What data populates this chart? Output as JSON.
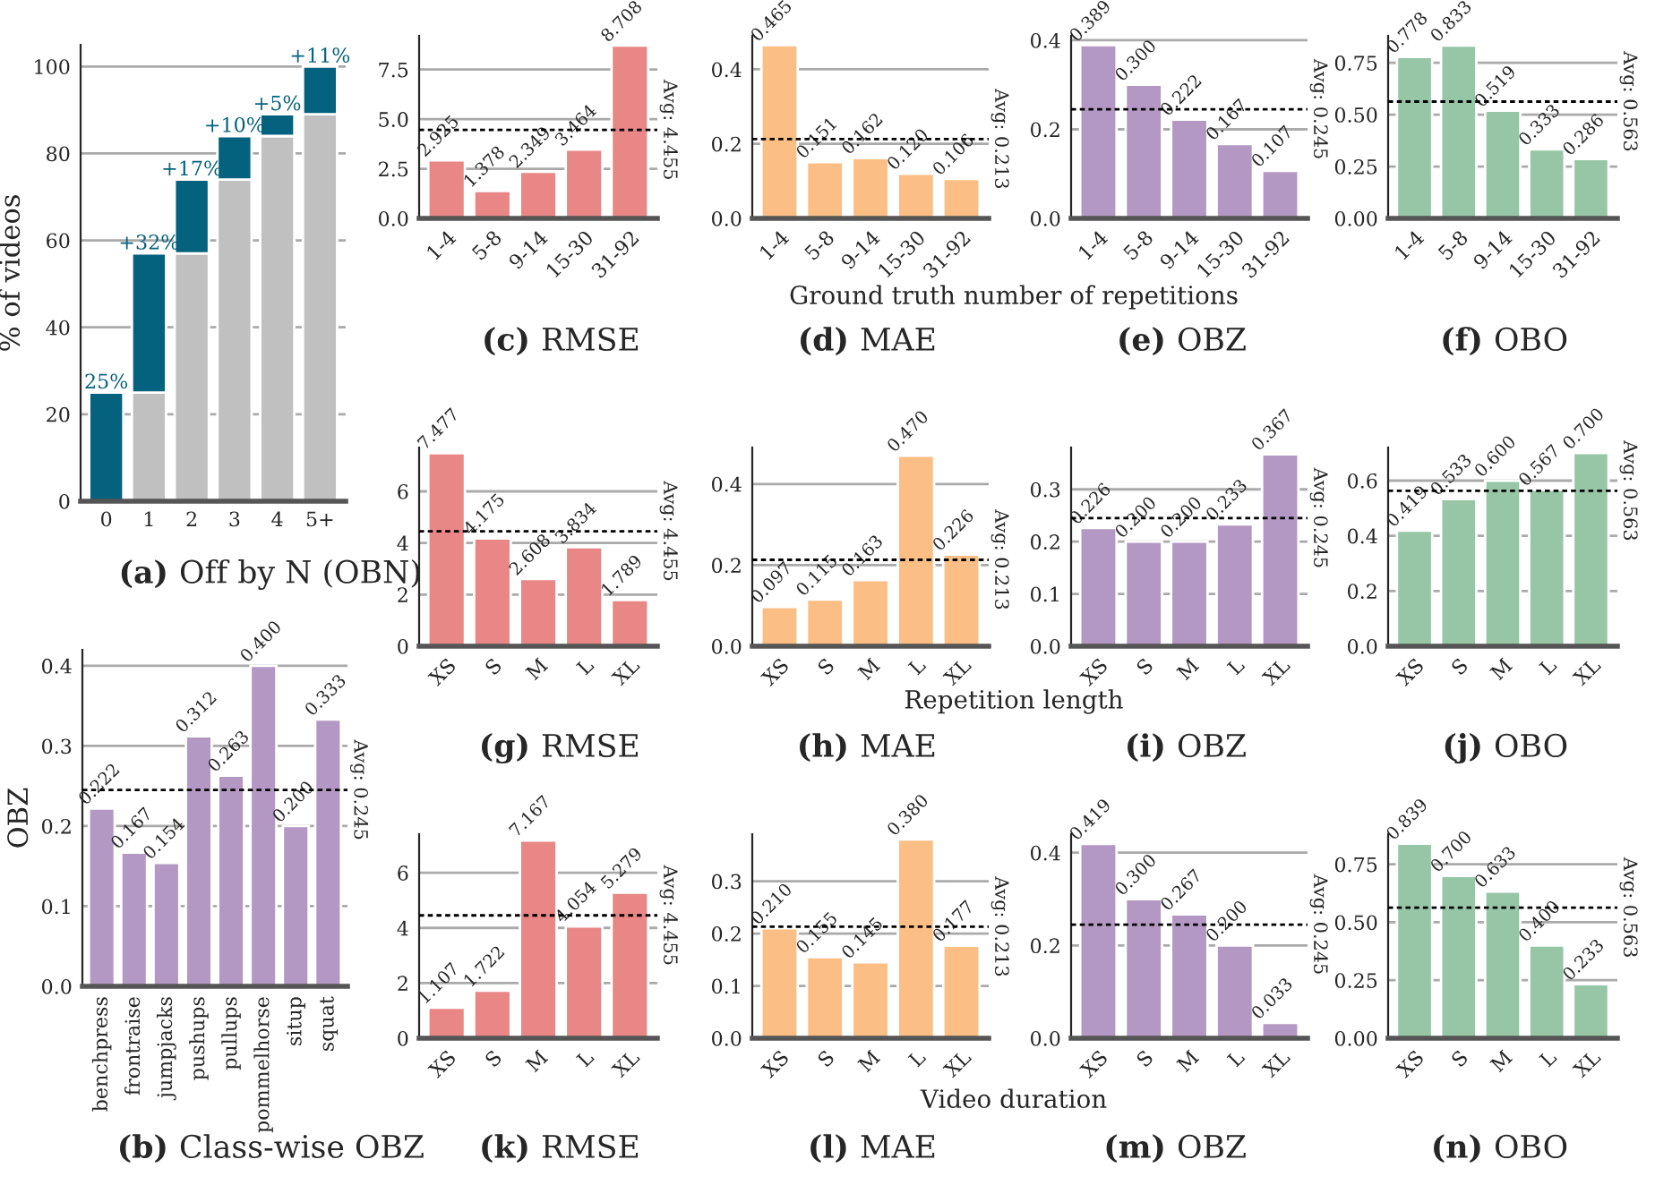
{
  "chart_data": [
    {
      "type": "bar",
      "title": "(a) Off by N (OBN)",
      "ylabel": "% of videos",
      "categories": [
        "0",
        "1",
        "2",
        "3",
        "4",
        "5+"
      ],
      "stacked": true,
      "ylim": [
        0,
        105
      ],
      "yticks": [
        0,
        20,
        40,
        60,
        80,
        100
      ],
      "grid": "y",
      "legend": false,
      "series": [
        {
          "color": "#c0c0c0",
          "values": [
            null,
            25,
            57,
            74,
            84,
            89
          ]
        },
        {
          "color": "#05627f",
          "values": [
            25,
            32,
            17,
            10,
            5,
            11
          ],
          "value_labels": [
            "25%",
            "+32%",
            "+17%",
            "+10%",
            "+5%",
            "+11%"
          ]
        }
      ]
    },
    {
      "type": "bar",
      "title": "(b) Class-wise OBZ",
      "ylabel": "OBZ",
      "categories": [
        "benchpress",
        "frontraise",
        "jumpjacks",
        "pushups",
        "pullups",
        "pommelhorse",
        "situp",
        "squat"
      ],
      "values": [
        0.222,
        0.167,
        0.154,
        0.312,
        0.263,
        0.4,
        0.2,
        0.333
      ],
      "value_labels": [
        "0.222",
        "0.167",
        "0.154",
        "0.312",
        "0.263",
        "0.400",
        "0.200",
        "0.333"
      ],
      "color": "#b498c4",
      "ylim": [
        0,
        0.42
      ],
      "yticks": [
        {
          "value": 0,
          "label": "0.0"
        },
        0.1,
        0.2,
        0.3,
        0.4
      ],
      "grid": "y",
      "ref_lines": [
        {
          "axis": "y",
          "value": 0.245,
          "label": "Avg: 0.245",
          "line_style": "dotted"
        }
      ]
    },
    {
      "type": "bar",
      "title": "(c) RMSE",
      "categories": [
        "1-4",
        "5-8",
        "9-14",
        "15-30",
        "31-92"
      ],
      "values": [
        2.925,
        1.378,
        2.349,
        3.464,
        8.708
      ],
      "value_labels": [
        "2.925",
        "1.378",
        "2.349",
        "3.464",
        "8.708"
      ],
      "color": "#e98686",
      "ylim": [
        0,
        9.2
      ],
      "yticks": [
        {
          "value": 0,
          "label": "0.0"
        },
        2.5,
        {
          "value": 5,
          "label": "5.0"
        },
        7.5
      ],
      "grid": "y",
      "ref_lines": [
        {
          "axis": "y",
          "value": 4.455,
          "label": "Avg: 4.455",
          "line_style": "dotted"
        }
      ]
    },
    {
      "type": "bar",
      "title": "(d) MAE",
      "xlabel": "Ground truth number of repetitions",
      "categories": [
        "1-4",
        "5-8",
        "9-14",
        "15-30",
        "31-92"
      ],
      "values": [
        0.465,
        0.151,
        0.162,
        0.12,
        0.106
      ],
      "value_labels": [
        "0.465",
        "0.151",
        "0.162",
        "0.120",
        "0.106"
      ],
      "color": "#fbbf85",
      "ylim": [
        0,
        0.49
      ],
      "yticks": [
        {
          "value": 0,
          "label": "0.0"
        },
        0.2,
        0.4
      ],
      "grid": "y",
      "ref_lines": [
        {
          "axis": "y",
          "value": 0.213,
          "label": "Avg: 0.213",
          "line_style": "dotted"
        }
      ]
    },
    {
      "type": "bar",
      "title": "(e) OBZ",
      "categories": [
        "1-4",
        "5-8",
        "9-14",
        "15-30",
        "31-92"
      ],
      "values": [
        0.389,
        0.3,
        0.222,
        0.167,
        0.107
      ],
      "value_labels": [
        "0.389",
        "0.300",
        "0.222",
        "0.167",
        "0.107"
      ],
      "color": "#b498c4",
      "ylim": [
        0,
        0.41
      ],
      "yticks": [
        {
          "value": 0,
          "label": "0.0"
        },
        0.2,
        0.4
      ],
      "grid": "y",
      "ref_lines": [
        {
          "axis": "y",
          "value": 0.245,
          "label": "Avg: 0.245",
          "line_style": "dotted"
        }
      ]
    },
    {
      "type": "bar",
      "title": "(f) OBO",
      "categories": [
        "1-4",
        "5-8",
        "9-14",
        "15-30",
        "31-92"
      ],
      "values": [
        0.778,
        0.833,
        0.519,
        0.333,
        0.286
      ],
      "value_labels": [
        "0.778",
        "0.833",
        "0.519",
        "0.333",
        "0.286"
      ],
      "color": "#96c6a6",
      "ylim": [
        0,
        0.88
      ],
      "yticks": [
        {
          "value": 0,
          "label": "0.00"
        },
        0.25,
        {
          "value": 0.5,
          "label": "0.50"
        },
        0.75
      ],
      "grid": "y",
      "ref_lines": [
        {
          "axis": "y",
          "value": 0.563,
          "label": "Avg: 0.563",
          "line_style": "dotted"
        }
      ]
    },
    {
      "type": "bar",
      "title": "(g) RMSE",
      "categories": [
        "XS",
        "S",
        "M",
        "L",
        "XL"
      ],
      "values": [
        7.477,
        4.175,
        2.608,
        3.834,
        1.789
      ],
      "value_labels": [
        "7.477",
        "4.175",
        "2.608",
        "3.834",
        "1.789"
      ],
      "color": "#e98686",
      "ylim": [
        0,
        7.7
      ],
      "yticks": [
        0,
        2,
        4,
        6
      ],
      "grid": "y",
      "ref_lines": [
        {
          "axis": "y",
          "value": 4.455,
          "label": "Avg: 4.455",
          "line_style": "dotted"
        }
      ]
    },
    {
      "type": "bar",
      "title": "(h) MAE",
      "xlabel": "Repetition length",
      "categories": [
        "XS",
        "S",
        "M",
        "L",
        "XL"
      ],
      "values": [
        0.097,
        0.115,
        0.163,
        0.47,
        0.226
      ],
      "value_labels": [
        "0.097",
        "0.115",
        "0.163",
        "0.470",
        "0.226"
      ],
      "color": "#fbbf85",
      "ylim": [
        0,
        0.49
      ],
      "yticks": [
        {
          "value": 0,
          "label": "0.0"
        },
        0.2,
        0.4
      ],
      "grid": "y",
      "ref_lines": [
        {
          "axis": "y",
          "value": 0.213,
          "label": "Avg: 0.213",
          "line_style": "dotted"
        }
      ]
    },
    {
      "type": "bar",
      "title": "(i) OBZ",
      "categories": [
        "XS",
        "S",
        "M",
        "L",
        "XL"
      ],
      "values": [
        0.226,
        0.2,
        0.2,
        0.233,
        0.367
      ],
      "value_labels": [
        "0.226",
        "0.200",
        "0.200",
        "0.233",
        "0.367"
      ],
      "color": "#b498c4",
      "ylim": [
        0,
        0.38
      ],
      "yticks": [
        {
          "value": 0,
          "label": "0.0"
        },
        0.1,
        0.2,
        0.3
      ],
      "grid": "y",
      "ref_lines": [
        {
          "axis": "y",
          "value": 0.245,
          "label": "Avg: 0.245",
          "line_style": "dotted"
        }
      ]
    },
    {
      "type": "bar",
      "title": "(j) OBO",
      "categories": [
        "XS",
        "S",
        "M",
        "L",
        "XL"
      ],
      "values": [
        0.419,
        0.533,
        0.6,
        0.567,
        0.7
      ],
      "value_labels": [
        "0.419",
        "0.533",
        "0.600",
        "0.567",
        "0.700"
      ],
      "color": "#96c6a6",
      "ylim": [
        0,
        0.72
      ],
      "yticks": [
        {
          "value": 0,
          "label": "0.0"
        },
        0.2,
        0.4,
        0.6
      ],
      "grid": "y",
      "ref_lines": [
        {
          "axis": "y",
          "value": 0.563,
          "label": "Avg: 0.563",
          "line_style": "dotted"
        }
      ]
    },
    {
      "type": "bar",
      "title": "(k) RMSE",
      "categories": [
        "XS",
        "S",
        "M",
        "L",
        "XL"
      ],
      "values": [
        1.107,
        1.722,
        7.167,
        4.054,
        5.279
      ],
      "value_labels": [
        "1.107",
        "1.722",
        "7.167",
        "4.054",
        "5.279"
      ],
      "color": "#e98686",
      "ylim": [
        0,
        7.4
      ],
      "yticks": [
        0,
        2,
        4,
        6
      ],
      "grid": "y",
      "ref_lines": [
        {
          "axis": "y",
          "value": 4.455,
          "label": "Avg: 4.455",
          "line_style": "dotted"
        }
      ]
    },
    {
      "type": "bar",
      "title": "(l) MAE",
      "xlabel": "Video duration",
      "categories": [
        "XS",
        "S",
        "M",
        "L",
        "XL"
      ],
      "values": [
        0.21,
        0.155,
        0.145,
        0.38,
        0.177
      ],
      "value_labels": [
        "0.210",
        "0.155",
        "0.145",
        "0.380",
        "0.177"
      ],
      "color": "#fbbf85",
      "ylim": [
        0,
        0.39
      ],
      "yticks": [
        {
          "value": 0,
          "label": "0.0"
        },
        0.1,
        0.2,
        0.3
      ],
      "grid": "y",
      "ref_lines": [
        {
          "axis": "y",
          "value": 0.213,
          "label": "Avg: 0.213",
          "line_style": "dotted"
        }
      ]
    },
    {
      "type": "bar",
      "title": "(m) OBZ",
      "categories": [
        "XS",
        "S",
        "M",
        "L",
        "XL"
      ],
      "values": [
        0.419,
        0.3,
        0.267,
        0.2,
        0.033
      ],
      "value_labels": [
        "0.419",
        "0.300",
        "0.267",
        "0.200",
        "0.033"
      ],
      "color": "#b498c4",
      "ylim": [
        0,
        0.44
      ],
      "yticks": [
        {
          "value": 0,
          "label": "0.0"
        },
        0.2,
        0.4
      ],
      "grid": "y",
      "ref_lines": [
        {
          "axis": "y",
          "value": 0.245,
          "label": "Avg: 0.245",
          "line_style": "dotted"
        }
      ]
    },
    {
      "type": "bar",
      "title": "(n) OBO",
      "categories": [
        "XS",
        "S",
        "M",
        "L",
        "XL"
      ],
      "values": [
        0.839,
        0.7,
        0.633,
        0.4,
        0.233
      ],
      "value_labels": [
        "0.839",
        "0.700",
        "0.633",
        "0.400",
        "0.233"
      ],
      "color": "#96c6a6",
      "ylim": [
        0,
        0.88
      ],
      "yticks": [
        {
          "value": 0,
          "label": "0.00"
        },
        0.25,
        {
          "value": 0.5,
          "label": "0.50"
        },
        0.75
      ],
      "grid": "y",
      "ref_lines": [
        {
          "axis": "y",
          "value": 0.563,
          "label": "Avg: 0.563",
          "line_style": "dotted"
        }
      ]
    }
  ]
}
